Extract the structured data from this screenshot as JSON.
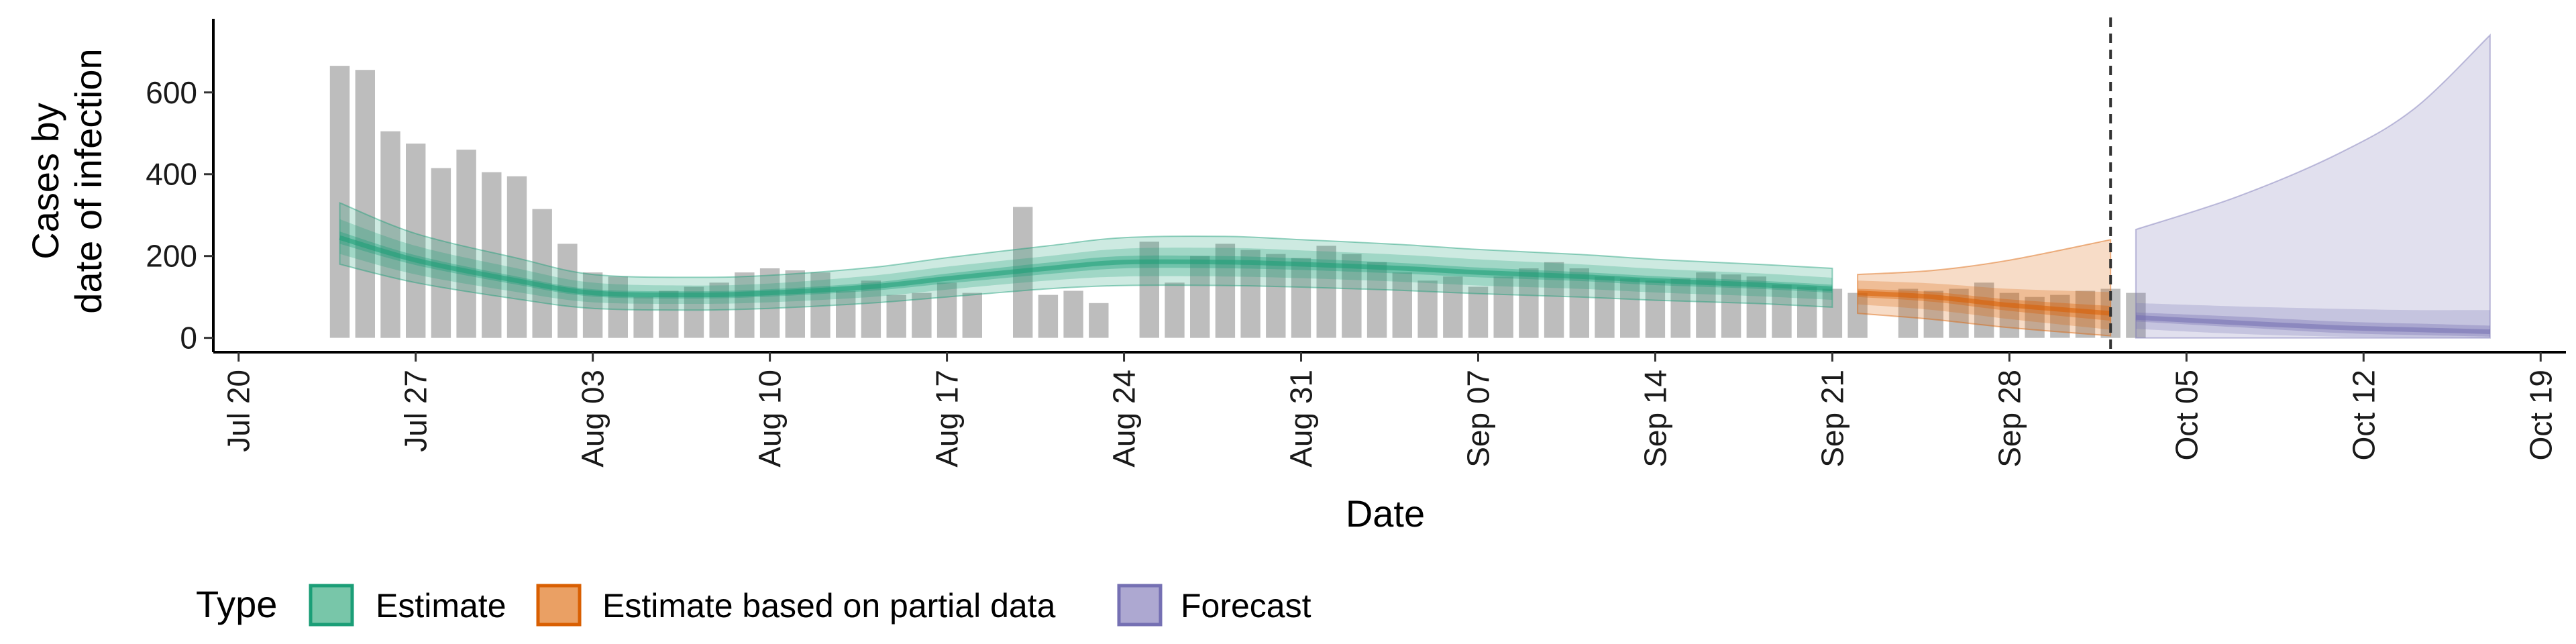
{
  "chart_data": {
    "type": "bar",
    "xlabel": "Date",
    "ylabel_lines": [
      "Cases by",
      "date of infection"
    ],
    "y_ticks": [
      0,
      200,
      400,
      600
    ],
    "ylim": [
      -35,
      780
    ],
    "x_ticks": [
      {
        "date": "2020-07-20",
        "label": "Jul 20"
      },
      {
        "date": "2020-07-27",
        "label": "Jul 27"
      },
      {
        "date": "2020-08-03",
        "label": "Aug 03"
      },
      {
        "date": "2020-08-10",
        "label": "Aug 10"
      },
      {
        "date": "2020-08-17",
        "label": "Aug 17"
      },
      {
        "date": "2020-08-24",
        "label": "Aug 24"
      },
      {
        "date": "2020-08-31",
        "label": "Aug 31"
      },
      {
        "date": "2020-09-07",
        "label": "Sep 07"
      },
      {
        "date": "2020-09-14",
        "label": "Sep 14"
      },
      {
        "date": "2020-09-21",
        "label": "Sep 21"
      },
      {
        "date": "2020-09-28",
        "label": "Sep 28"
      },
      {
        "date": "2020-10-05",
        "label": "Oct 05"
      },
      {
        "date": "2020-10-12",
        "label": "Oct 12"
      },
      {
        "date": "2020-10-19",
        "label": "Oct 19"
      }
    ],
    "xlim": [
      "2020-07-19",
      "2020-10-20"
    ],
    "grid": false,
    "legend": {
      "title": "Type",
      "placement": "bottom-left",
      "entries": [
        {
          "label": "Estimate",
          "fill": "#78c6a9",
          "stroke": "#1b9e77"
        },
        {
          "label": "Estimate based on partial data",
          "fill": "#eaa064",
          "stroke": "#d95f02"
        },
        {
          "label": "Forecast",
          "fill": "#ada8d1",
          "stroke": "#7570b3"
        }
      ]
    },
    "forecast_start_line": "2020-10-02",
    "colors": {
      "bars": "#bdbdbd",
      "estimate": "#1b9e77",
      "partial": "#d95f02",
      "forecast": "#7570b3",
      "vline": "#333333"
    },
    "bars": {
      "start_date": "2020-07-24",
      "values": [
        665,
        655,
        505,
        475,
        415,
        460,
        405,
        395,
        315,
        230,
        160,
        150,
        100,
        115,
        125,
        135,
        160,
        170,
        165,
        160,
        115,
        140,
        105,
        110,
        135,
        110,
        0,
        320,
        105,
        115,
        85,
        0,
        235,
        135,
        200,
        230,
        215,
        205,
        195,
        225,
        205,
        185,
        160,
        140,
        150,
        125,
        150,
        170,
        185,
        170,
        150,
        145,
        140,
        145,
        160,
        155,
        150,
        130,
        125,
        120,
        110,
        0,
        120,
        115,
        120,
        135,
        110,
        100,
        105,
        115,
        120,
        110
      ]
    },
    "series": [
      {
        "name": "Estimate",
        "x": [
          "2020-07-24",
          "2020-07-27",
          "2020-07-31",
          "2020-08-03",
          "2020-08-07",
          "2020-08-10",
          "2020-08-14",
          "2020-08-17",
          "2020-08-21",
          "2020-08-24",
          "2020-08-28",
          "2020-08-31",
          "2020-09-04",
          "2020-09-07",
          "2020-09-11",
          "2020-09-14",
          "2020-09-18",
          "2020-09-21"
        ],
        "median": [
          245,
          190,
          140,
          110,
          105,
          110,
          125,
          145,
          170,
          185,
          185,
          180,
          170,
          160,
          150,
          140,
          130,
          120
        ],
        "inner": [
          [
            230,
            260
          ],
          [
            178,
            202
          ],
          [
            130,
            150
          ],
          [
            101,
            119
          ],
          [
            96,
            114
          ],
          [
            101,
            119
          ],
          [
            115,
            135
          ],
          [
            133,
            157
          ],
          [
            156,
            184
          ],
          [
            170,
            200
          ],
          [
            170,
            200
          ],
          [
            166,
            194
          ],
          [
            157,
            183
          ],
          [
            148,
            172
          ],
          [
            139,
            161
          ],
          [
            129,
            151
          ],
          [
            120,
            140
          ],
          [
            110,
            130
          ]
        ],
        "mid": [
          [
            205,
            290
          ],
          [
            155,
            225
          ],
          [
            112,
            170
          ],
          [
            87,
            135
          ],
          [
            83,
            128
          ],
          [
            87,
            133
          ],
          [
            100,
            152
          ],
          [
            118,
            174
          ],
          [
            140,
            200
          ],
          [
            150,
            218
          ],
          [
            150,
            220
          ],
          [
            146,
            214
          ],
          [
            137,
            203
          ],
          [
            128,
            192
          ],
          [
            120,
            180
          ],
          [
            111,
            169
          ],
          [
            102,
            158
          ],
          [
            93,
            147
          ]
        ],
        "outer": [
          [
            180,
            330
          ],
          [
            135,
            255
          ],
          [
            95,
            195
          ],
          [
            72,
            155
          ],
          [
            68,
            148
          ],
          [
            72,
            153
          ],
          [
            85,
            172
          ],
          [
            100,
            196
          ],
          [
            120,
            225
          ],
          [
            128,
            245
          ],
          [
            128,
            248
          ],
          [
            124,
            240
          ],
          [
            116,
            228
          ],
          [
            108,
            216
          ],
          [
            100,
            204
          ],
          [
            92,
            192
          ],
          [
            84,
            180
          ],
          [
            75,
            170
          ]
        ]
      },
      {
        "name": "Estimate based on partial data",
        "x": [
          "2020-09-22",
          "2020-09-25",
          "2020-09-28",
          "2020-10-02"
        ],
        "median": [
          110,
          100,
          80,
          60
        ],
        "inner": [
          [
            100,
            120
          ],
          [
            88,
            112
          ],
          [
            66,
            94
          ],
          [
            42,
            78
          ]
        ],
        "mid": [
          [
            82,
            140
          ],
          [
            68,
            133
          ],
          [
            46,
            120
          ],
          [
            20,
            112
          ]
        ],
        "outer": [
          [
            60,
            155
          ],
          [
            45,
            165
          ],
          [
            25,
            190
          ],
          [
            5,
            240
          ]
        ]
      },
      {
        "name": "Forecast",
        "x": [
          "2020-10-03",
          "2020-10-07",
          "2020-10-11",
          "2020-10-14",
          "2020-10-17"
        ],
        "median": [
          50,
          37,
          25,
          20,
          15
        ],
        "inner": [
          [
            40,
            62
          ],
          [
            26,
            52
          ],
          [
            12,
            40
          ],
          [
            7,
            35
          ],
          [
            3,
            30
          ]
        ],
        "mid": [
          [
            22,
            85
          ],
          [
            10,
            77
          ],
          [
            3,
            71
          ],
          [
            1,
            68
          ],
          [
            0,
            68
          ]
        ],
        "outer": [
          [
            0,
            265
          ],
          [
            0,
            345
          ],
          [
            0,
            450
          ],
          [
            0,
            560
          ],
          [
            0,
            740
          ]
        ]
      }
    ]
  }
}
